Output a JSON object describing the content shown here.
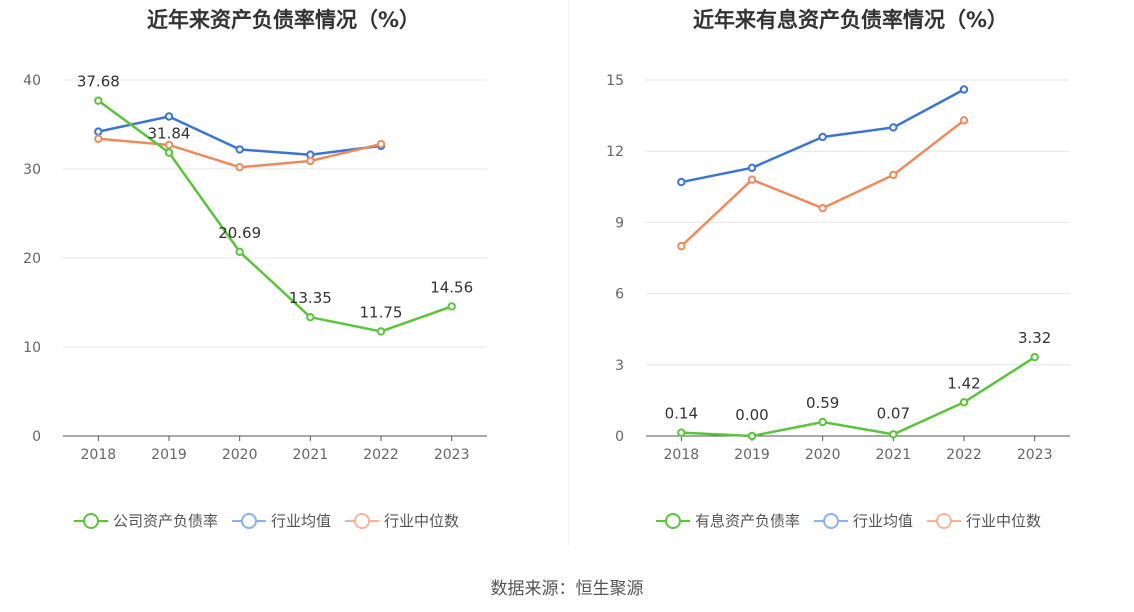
{
  "colors": {
    "company": "#5ac43a",
    "avg": "#3a74d6",
    "median": "#f08a5d",
    "grid": "#e6e6e6",
    "axis": "#555555"
  },
  "source_label": "数据来源：恒生聚源",
  "chart_data": [
    {
      "type": "line",
      "title": "近年来资产负债率情况（%）",
      "categories": [
        "2018",
        "2019",
        "2020",
        "2021",
        "2022",
        "2023"
      ],
      "y_ticks": [
        "0",
        "10",
        "20",
        "30",
        "40"
      ],
      "ylim": [
        0,
        40
      ],
      "grid": true,
      "legend_position": "bottom",
      "series": [
        {
          "name": "公司资产负债率",
          "color_key": "company",
          "values": [
            37.68,
            31.84,
            20.69,
            13.35,
            11.75,
            14.56
          ],
          "labels": [
            "37.68",
            "31.84",
            "20.69",
            "13.35",
            "11.75",
            "14.56"
          ]
        },
        {
          "name": "行业均值",
          "color_key": "avg",
          "values": [
            34.2,
            35.9,
            32.2,
            31.6,
            32.6,
            null
          ],
          "labels": []
        },
        {
          "name": "行业中位数",
          "color_key": "median",
          "values": [
            33.4,
            32.7,
            30.2,
            30.9,
            32.8,
            null
          ],
          "labels": []
        }
      ]
    },
    {
      "type": "line",
      "title": "近年来有息资产负债率情况（%）",
      "categories": [
        "2018",
        "2019",
        "2020",
        "2021",
        "2022",
        "2023"
      ],
      "y_ticks": [
        "0",
        "3",
        "6",
        "9",
        "12",
        "15"
      ],
      "ylim": [
        0,
        15
      ],
      "grid": true,
      "legend_position": "bottom",
      "series": [
        {
          "name": "有息资产负债率",
          "color_key": "company",
          "values": [
            0.14,
            0.0,
            0.59,
            0.07,
            1.42,
            3.32
          ],
          "labels": [
            "0.14",
            "0.00",
            "0.59",
            "0.07",
            "1.42",
            "3.32"
          ]
        },
        {
          "name": "行业均值",
          "color_key": "avg",
          "values": [
            10.7,
            11.3,
            12.6,
            13.0,
            14.6,
            null
          ],
          "labels": []
        },
        {
          "name": "行业中位数",
          "color_key": "median",
          "values": [
            8.0,
            10.8,
            9.6,
            11.0,
            13.3,
            null
          ],
          "labels": []
        }
      ]
    }
  ]
}
